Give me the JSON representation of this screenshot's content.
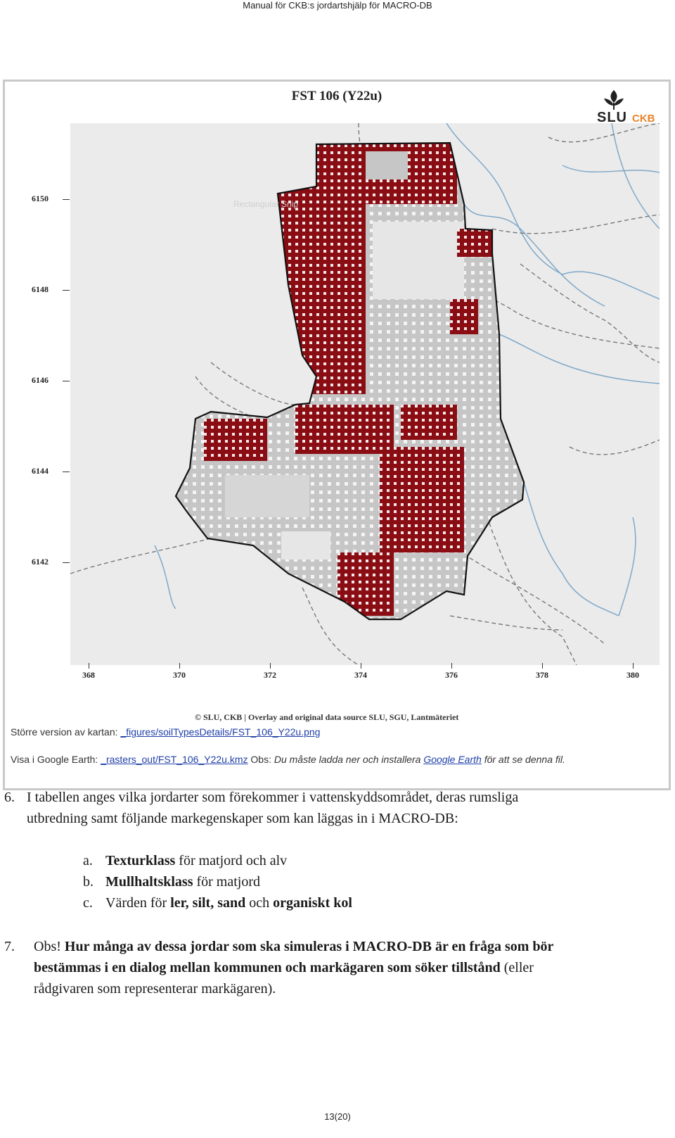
{
  "header": {
    "title": "Manual för CKB:s jordartshjälp för MACRO-DB"
  },
  "figure": {
    "title": "FST 106 (Y22u)",
    "logo": {
      "slu": "SLU",
      "ckb": "CKB",
      "ckb_color": "#e8832a"
    },
    "watermark": "Rectangular Snip",
    "y_ticks": [
      "6150",
      "6148",
      "6146",
      "6144",
      "6142"
    ],
    "x_ticks": [
      "368",
      "370",
      "372",
      "374",
      "376",
      "378",
      "380"
    ],
    "attribution": "© SLU, CKB | Overlay and original data source SLU, SGU, Lantmäteriet",
    "larger_version": {
      "label": "Större version av kartan:",
      "link": "_figures/soilTypesDetails/FST_106_Y22u.png"
    },
    "google_earth": {
      "label": "Visa i Google Earth:",
      "link": "_rasters_out/FST_106_Y22u.kmz",
      "obs_label": "Obs:",
      "note_before": "Du måste ladda ner och installera",
      "note_link": "Google Earth",
      "note_after": "för att se denna fil."
    },
    "colors": {
      "soil_primary": "#8b0d14",
      "soil_secondary": "#c8c8c8",
      "background": "#ebebeb",
      "water": "#7fa8c8"
    }
  },
  "item6": {
    "number": "6.",
    "text": "I tabellen anges vilka jordarter som förekommer i vattenskyddsområdet, deras rumsliga utbredning samt följande markegenskaper som kan läggas in i MACRO-DB:",
    "subs": [
      {
        "letter": "a.",
        "bold": "Texturklass",
        "rest": " för matjord och alv"
      },
      {
        "letter": "b.",
        "bold": "Mullhaltsklass",
        "rest": " för matjord"
      },
      {
        "letter": "c.",
        "pre": "Värden för ",
        "bold1": "ler, silt, sand",
        "mid": " och ",
        "bold2": "organiskt kol"
      }
    ]
  },
  "item7": {
    "number": "7.",
    "obs": "Obs!",
    "bold": "Hur många av dessa jordar som ska simuleras i MACRO-DB är en fråga som bör bestämmas i en dialog mellan kommunen och markägaren som söker tillstånd",
    "rest": " (eller rådgivaren som representerar markägaren)."
  },
  "footer": {
    "page": "13(20)"
  }
}
